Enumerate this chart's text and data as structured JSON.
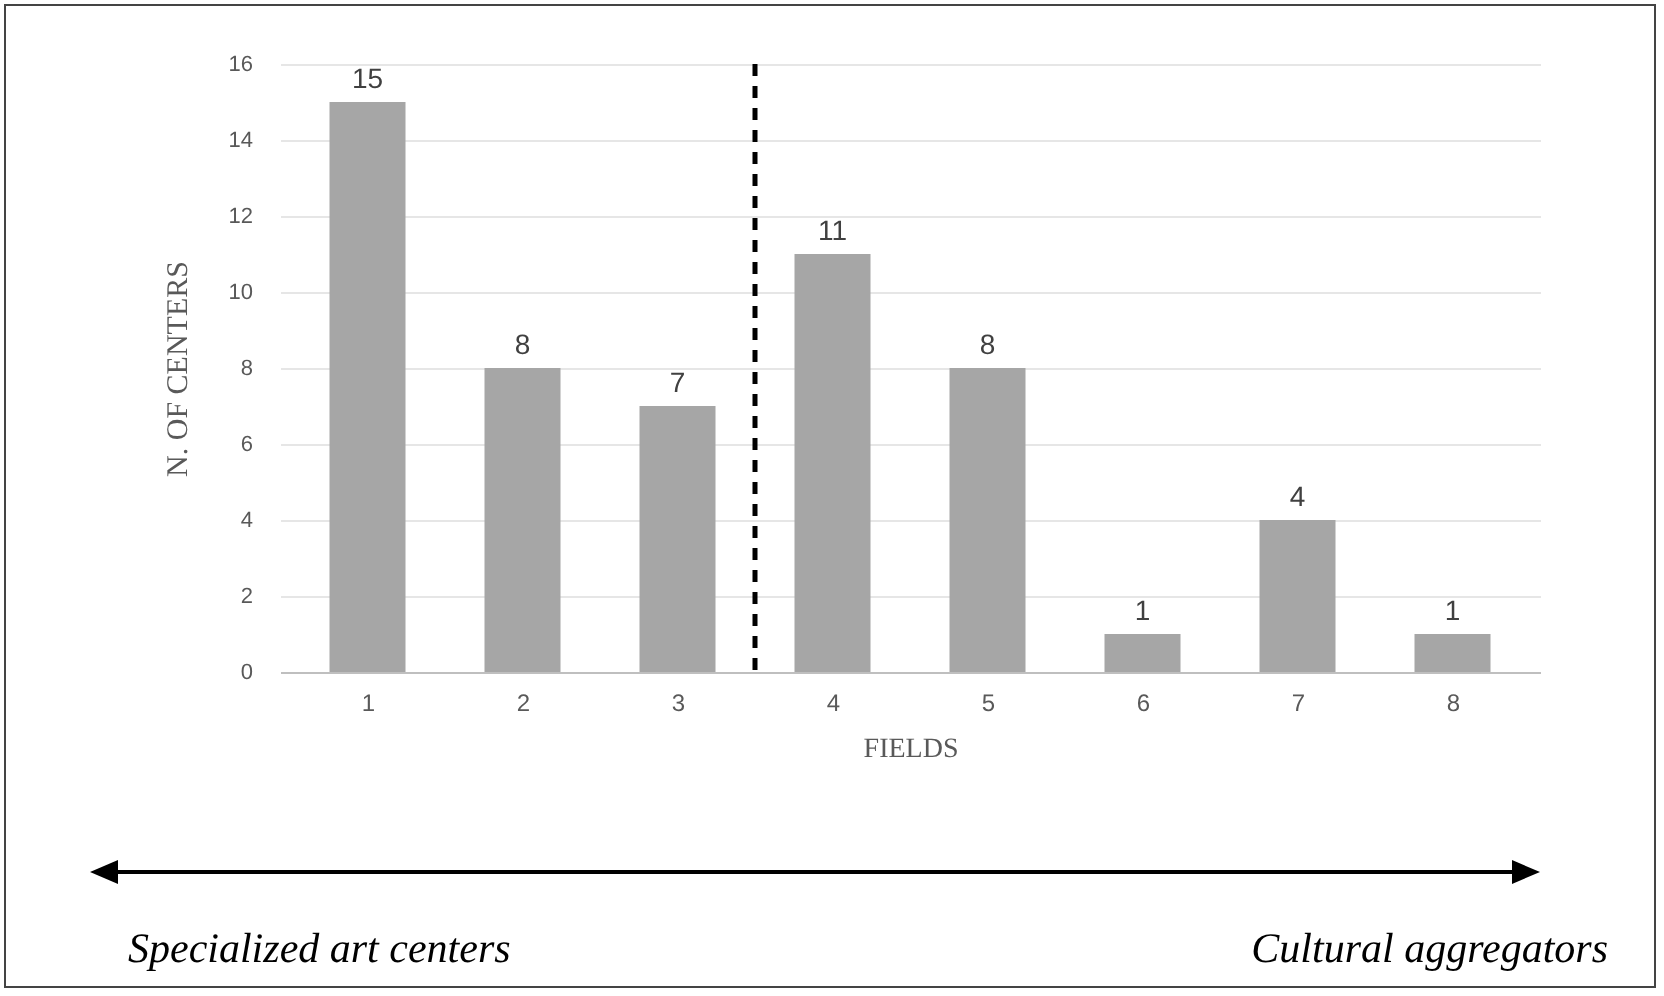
{
  "chart_data": {
    "type": "bar",
    "x": [
      1,
      2,
      3,
      4,
      5,
      6,
      7,
      8
    ],
    "values": [
      15,
      8,
      7,
      11,
      8,
      1,
      4,
      1
    ],
    "color": "#a6a6a6",
    "xlim": [
      0.5,
      8.5
    ],
    "xticks": [
      1,
      2,
      3,
      4,
      5,
      6,
      7,
      8
    ],
    "ylim": [
      0,
      16
    ],
    "yticks": [
      0,
      2,
      4,
      6,
      8,
      10,
      12,
      14,
      16
    ],
    "grid": "y",
    "data_labels": true,
    "xlabel": "FIELDS",
    "ylabel": "N. OF CENTERS",
    "ref_lines": [
      {
        "axis": "x",
        "value": 3.5,
        "color": "#000000",
        "line_style": "dashed"
      }
    ],
    "annotations": [
      "Specialized art centers",
      "Cultural aggregators"
    ]
  }
}
